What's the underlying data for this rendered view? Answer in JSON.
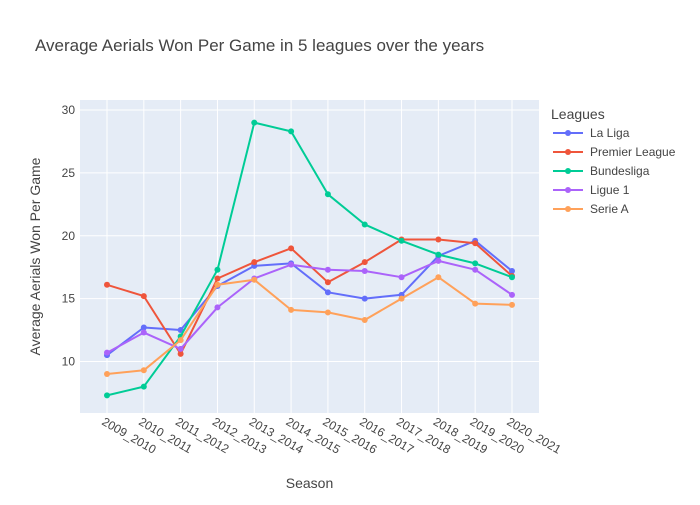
{
  "chart_data": {
    "type": "line",
    "title": "Average Aerials Won Per Game in 5 leagues over the years",
    "xlabel": "Season",
    "ylabel": "Average Aerials Won Per Game",
    "legend_title": "Leagues",
    "legend_position": "right",
    "grid": true,
    "ylim": [
      5.9,
      30.8
    ],
    "yticks": [
      10,
      15,
      20,
      25,
      30
    ],
    "categories": [
      "2009_2010",
      "2010_2011",
      "2011_2012",
      "2012_2013",
      "2013_2014",
      "2014_2015",
      "2015_2016",
      "2016_2017",
      "2017_2018",
      "2018_2019",
      "2019_2020",
      "2020_2021"
    ],
    "series": [
      {
        "name": "La Liga",
        "color": "#636efa",
        "values": [
          10.5,
          12.7,
          12.5,
          16.0,
          17.6,
          17.8,
          15.5,
          15.0,
          15.3,
          18.4,
          19.6,
          17.2
        ]
      },
      {
        "name": "Premier League",
        "color": "#EF553B",
        "values": [
          16.1,
          15.2,
          10.6,
          16.6,
          17.9,
          19.0,
          16.3,
          17.9,
          19.7,
          19.7,
          19.4,
          16.8
        ]
      },
      {
        "name": "Bundesliga",
        "color": "#00cc96",
        "values": [
          7.3,
          8.0,
          12.0,
          17.3,
          29.0,
          28.3,
          23.3,
          20.9,
          19.6,
          18.5,
          17.8,
          16.7
        ]
      },
      {
        "name": "Ligue 1",
        "color": "#ab63fa",
        "values": [
          10.7,
          12.3,
          11.0,
          14.3,
          16.6,
          17.7,
          17.3,
          17.2,
          16.7,
          18.0,
          17.3,
          15.3
        ]
      },
      {
        "name": "Serie A",
        "color": "#FFA15A",
        "values": [
          9.0,
          9.3,
          11.7,
          16.1,
          16.5,
          14.1,
          13.9,
          13.3,
          15.0,
          16.7,
          14.6,
          14.5
        ]
      }
    ]
  }
}
